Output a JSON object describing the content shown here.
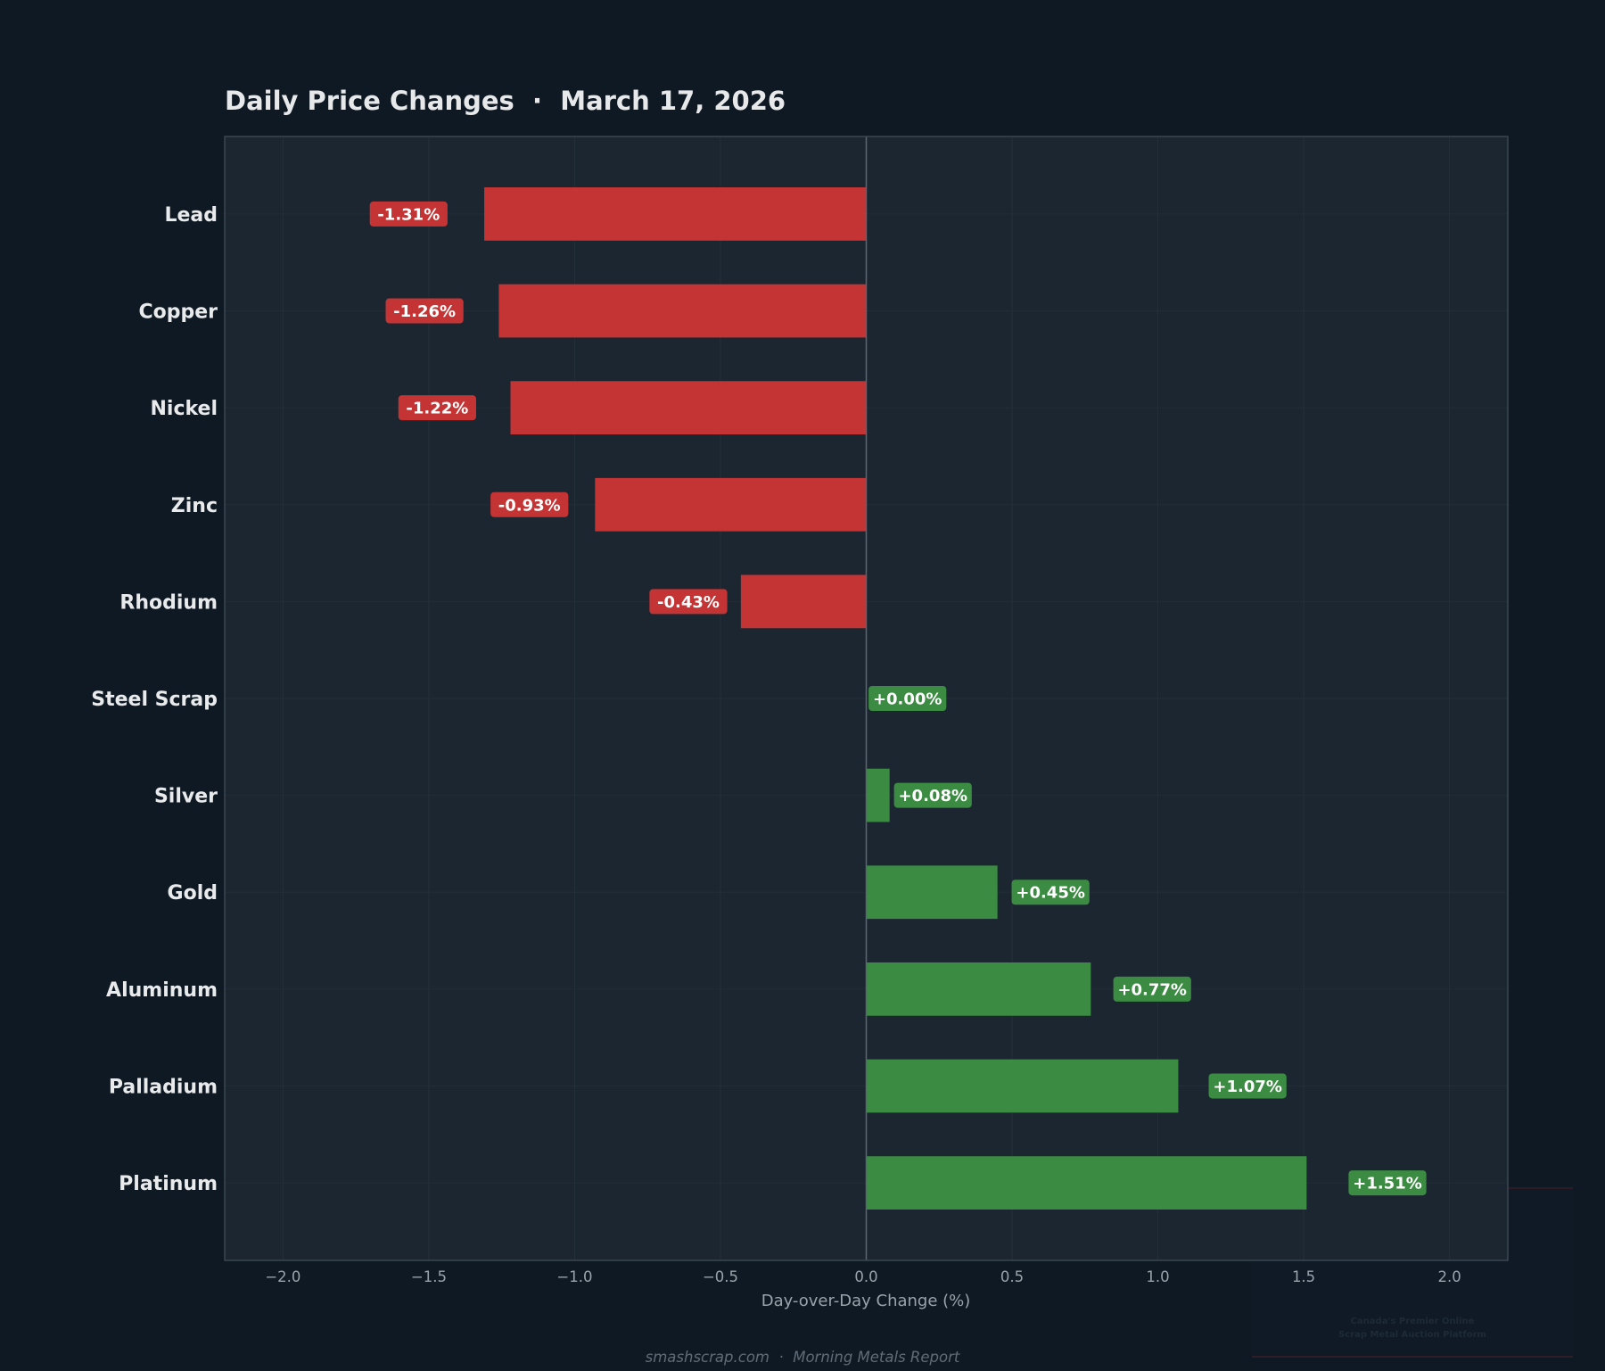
{
  "chart_data": {
    "type": "bar",
    "orientation": "horizontal",
    "title": "Daily Price Changes  ·  March 17, 2026",
    "xlabel": "Day-over-Day Change (%)",
    "ylabel": "",
    "xlim": [
      -2.2,
      2.2
    ],
    "xticks": [
      -2.0,
      -1.5,
      -1.0,
      -0.5,
      0.0,
      0.5,
      1.0,
      1.5,
      2.0
    ],
    "xtick_labels": [
      "−2.0",
      "−1.5",
      "−1.0",
      "−0.5",
      "0.0",
      "0.5",
      "1.0",
      "1.5",
      "2.0"
    ],
    "grid": true,
    "categories": [
      "Lead",
      "Copper",
      "Nickel",
      "Zinc",
      "Rhodium",
      "Steel Scrap",
      "Silver",
      "Gold",
      "Aluminum",
      "Palladium",
      "Platinum"
    ],
    "values": [
      -1.31,
      -1.26,
      -1.22,
      -0.93,
      -0.43,
      0.0,
      0.08,
      0.45,
      0.77,
      1.07,
      1.51
    ],
    "data_labels": [
      "-1.31%",
      "-1.26%",
      "-1.22%",
      "-0.93%",
      "-0.43%",
      "+0.00%",
      "+0.08%",
      "+0.45%",
      "+0.77%",
      "+1.07%",
      "+1.51%"
    ],
    "colors": {
      "negative": "#c43434",
      "positive": "#3b8c42",
      "background": "#0f1923",
      "plot_background": "#1c2630",
      "zero_line": "#5a6672"
    }
  },
  "footer": "smashscrap.com  ·  Morning Metals Report",
  "watermark": {
    "line1": "Canada's Premier Online",
    "line2": "Scrap Metal Auction Platform"
  }
}
